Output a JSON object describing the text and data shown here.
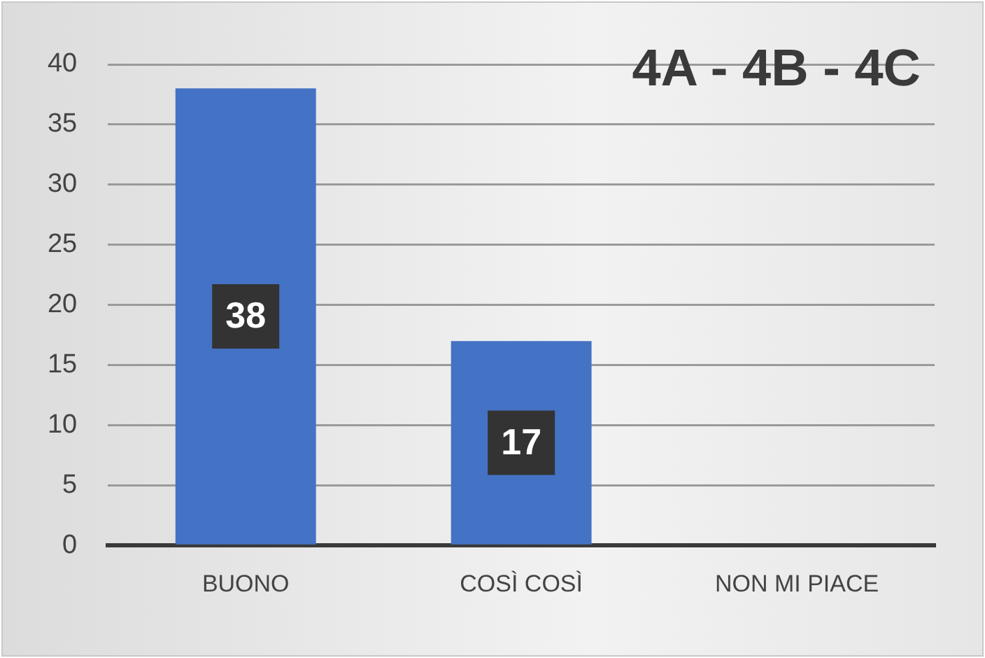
{
  "chart_data": {
    "type": "bar",
    "title": "4A - 4B - 4C",
    "categories": [
      "BUONO",
      "COSÌ COSÌ",
      "NON MI PIACE"
    ],
    "values": [
      38,
      17,
      0
    ],
    "value_labels": [
      "38",
      "17",
      null
    ],
    "color": "#4472c4",
    "ylim": [
      0,
      40
    ],
    "yticks": [
      0,
      5,
      10,
      15,
      20,
      25,
      30,
      35,
      40
    ],
    "grid": "y",
    "legend": false
  }
}
